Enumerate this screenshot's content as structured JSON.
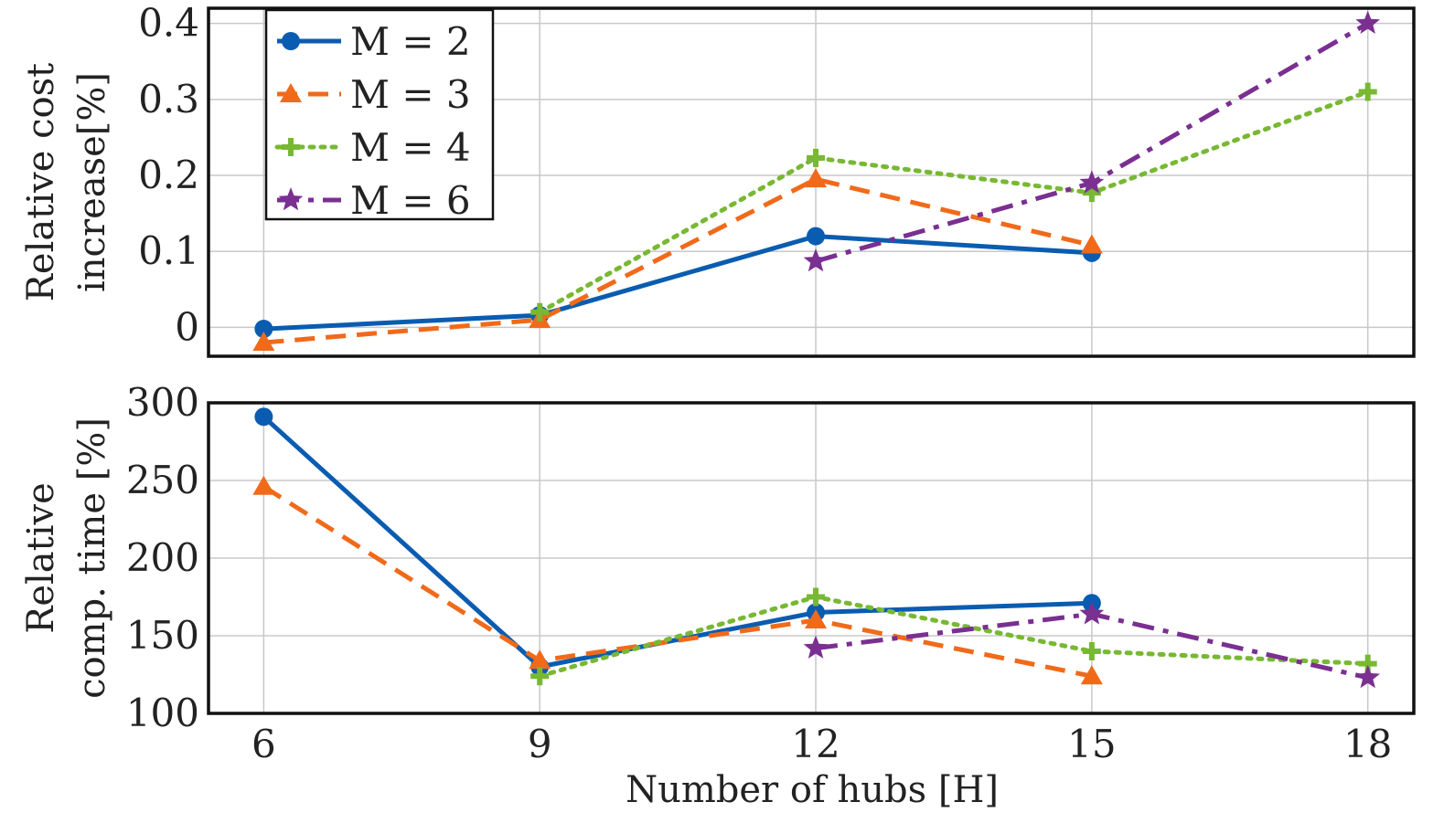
{
  "chart_data": [
    {
      "type": "line",
      "ylabel_lines": [
        "Relative cost",
        "increase[%]"
      ],
      "x_ticks": [
        6,
        9,
        12,
        15,
        18
      ],
      "y_ticks": [
        0,
        0.1,
        0.2,
        0.3,
        0.4
      ],
      "y_tick_labels": [
        "0",
        "0.1",
        "0.2",
        "0.3",
        "0.4"
      ],
      "ylim": [
        -0.038,
        0.42
      ],
      "xlim": [
        5.4,
        18.5
      ],
      "grid": true,
      "legend": {
        "placement": "top-left",
        "entries": [
          "M = 2",
          "M = 3",
          "M = 4",
          "M = 6"
        ]
      },
      "series": [
        {
          "name": "M = 2",
          "color": "#0a5cb0",
          "style": "solid",
          "marker": "circle",
          "x": [
            6,
            9,
            12,
            15
          ],
          "y": [
            -0.002,
            0.016,
            0.12,
            0.098
          ]
        },
        {
          "name": "M = 3",
          "color": "#f06a1a",
          "style": "dashed",
          "marker": "triangle",
          "x": [
            6,
            9,
            12,
            15
          ],
          "y": [
            -0.02,
            0.01,
            0.195,
            0.108
          ]
        },
        {
          "name": "M = 4",
          "color": "#78b833",
          "style": "dotted",
          "marker": "plus",
          "x": [
            9,
            12,
            15,
            18
          ],
          "y": [
            0.02,
            0.223,
            0.177,
            0.31
          ]
        },
        {
          "name": "M = 6",
          "color": "#7a2f91",
          "style": "dashdot",
          "marker": "star",
          "x": [
            12,
            15,
            18
          ],
          "y": [
            0.087,
            0.19,
            0.4
          ]
        }
      ]
    },
    {
      "type": "line",
      "ylabel_lines": [
        "Relative",
        "comp. time [%]"
      ],
      "xlabel": "Number of hubs [H]",
      "x_ticks": [
        6,
        9,
        12,
        15,
        18
      ],
      "x_tick_labels": [
        "6",
        "9",
        "12",
        "15",
        "18"
      ],
      "y_ticks": [
        100,
        150,
        200,
        250,
        300
      ],
      "y_tick_labels": [
        "100",
        "150",
        "200",
        "250",
        "300"
      ],
      "ylim": [
        100,
        300
      ],
      "xlim": [
        5.4,
        18.5
      ],
      "grid": true,
      "series": [
        {
          "name": "M = 2",
          "color": "#0a5cb0",
          "style": "solid",
          "marker": "circle",
          "x": [
            6,
            9,
            12,
            15
          ],
          "y": [
            291,
            130,
            165,
            171
          ]
        },
        {
          "name": "M = 3",
          "color": "#f06a1a",
          "style": "dashed",
          "marker": "triangle",
          "x": [
            6,
            9,
            12,
            15
          ],
          "y": [
            246,
            134,
            160,
            124
          ]
        },
        {
          "name": "M = 4",
          "color": "#78b833",
          "style": "dotted",
          "marker": "plus",
          "x": [
            9,
            12,
            15,
            18
          ],
          "y": [
            124,
            175,
            140,
            132
          ]
        },
        {
          "name": "M = 6",
          "color": "#7a2f91",
          "style": "dashdot",
          "marker": "star",
          "x": [
            12,
            15,
            18
          ],
          "y": [
            142,
            164,
            123
          ]
        }
      ]
    }
  ]
}
